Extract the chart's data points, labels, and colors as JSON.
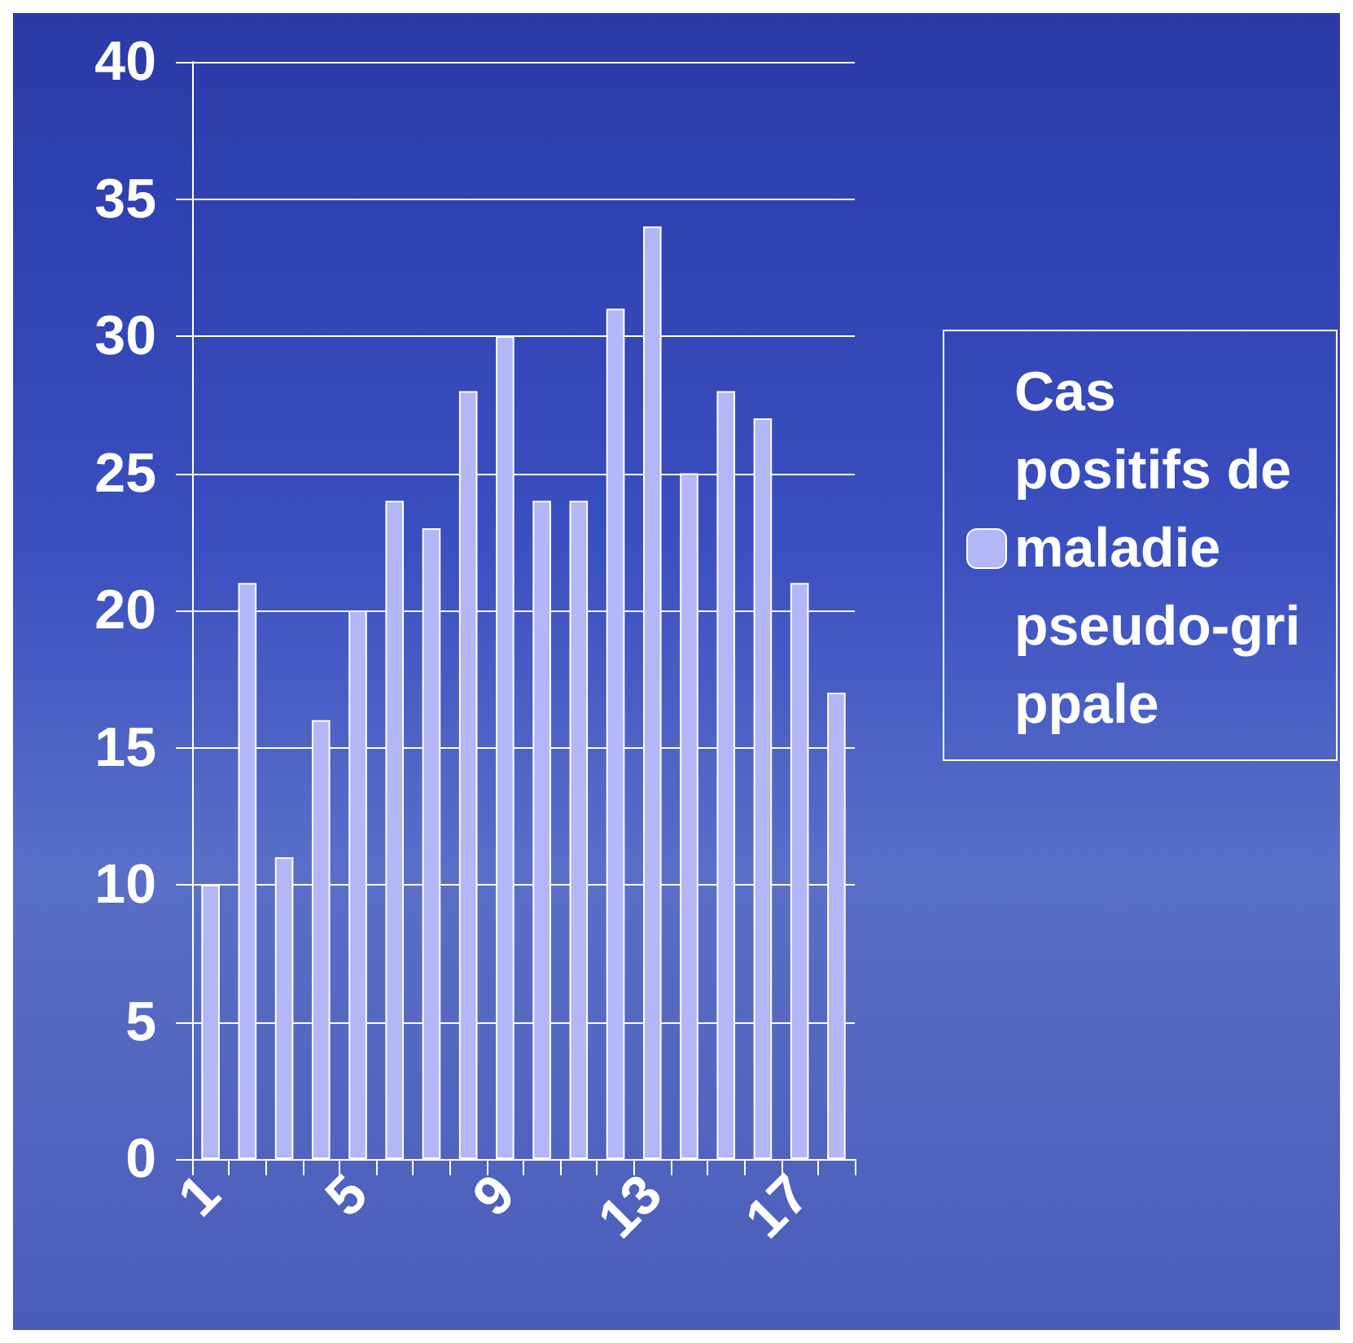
{
  "chart_data": {
    "type": "bar",
    "categories": [
      "1",
      null,
      null,
      null,
      "5",
      null,
      null,
      null,
      "9",
      null,
      null,
      null,
      "13",
      null,
      null,
      null,
      "17",
      null
    ],
    "series": [
      {
        "name": "Cas positifs de maladie pseudo-grippale",
        "color": "#b3b6f7",
        "values": [
          10,
          21,
          11,
          16,
          20,
          24,
          23,
          28,
          30,
          24,
          24,
          31,
          34,
          25,
          28,
          27,
          21,
          17
        ]
      }
    ],
    "ylim": [
      0,
      40
    ],
    "yticks": [
      0,
      5,
      10,
      15,
      20,
      25,
      30,
      35,
      40
    ],
    "grid": "y",
    "legend": "right"
  }
}
